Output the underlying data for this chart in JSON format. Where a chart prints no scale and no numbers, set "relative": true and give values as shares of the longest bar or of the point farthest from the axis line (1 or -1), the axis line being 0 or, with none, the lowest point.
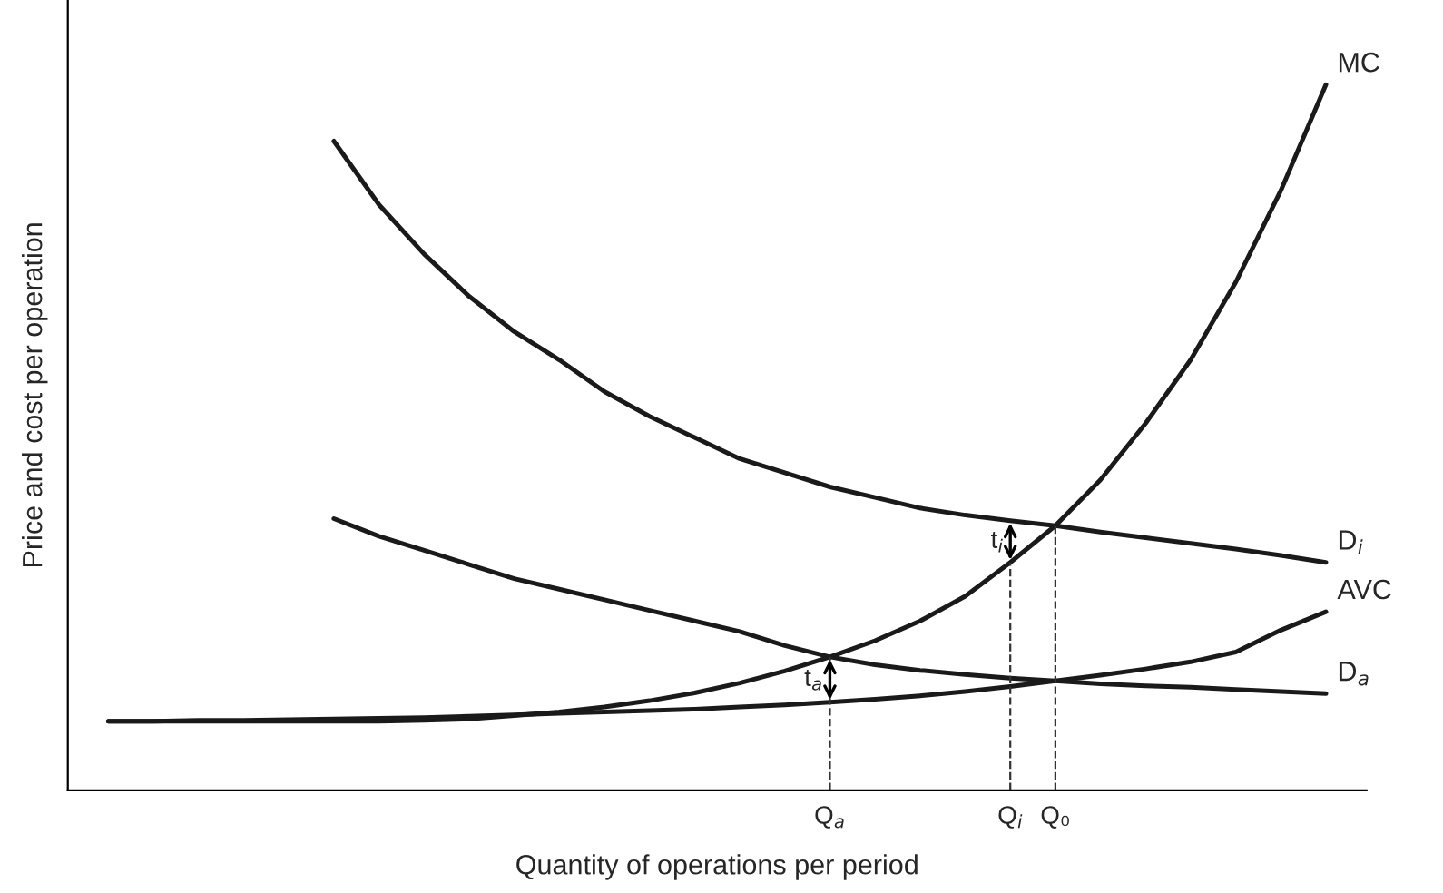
{
  "chart_data": {
    "type": "line",
    "relative": true,
    "xlabel": "Quantity of operations per period",
    "ylabel": "Price and cost per operation",
    "categories": [
      null,
      null,
      null,
      null,
      null,
      null,
      null,
      null,
      null,
      null,
      null,
      null,
      null,
      null,
      null,
      null,
      "Q$_{a}$",
      null,
      null,
      null,
      "Q$_{i}$",
      "Q₀",
      null,
      null,
      null,
      null,
      null,
      null
    ],
    "series": [
      {
        "name": "MC",
        "color": "#1a1a1a",
        "values": [
          0.098,
          0.098,
          0.098,
          0.098,
          0.098,
          0.098,
          0.098,
          0.099,
          0.101,
          0.106,
          0.111,
          0.118,
          0.127,
          0.138,
          0.152,
          0.169,
          0.189,
          0.212,
          0.24,
          0.275,
          0.323,
          0.375,
          0.44,
          0.52,
          0.61,
          0.72,
          0.85,
          1.0
        ]
      },
      {
        "name": "D$_{i}$",
        "color": "#1a1a1a",
        "values": [
          null,
          null,
          null,
          null,
          null,
          0.92,
          0.83,
          0.76,
          0.7,
          0.65,
          0.61,
          0.565,
          0.53,
          0.5,
          0.47,
          0.45,
          0.43,
          0.415,
          0.4,
          0.39,
          0.382,
          0.375,
          0.366,
          0.358,
          0.35,
          0.342,
          0.333,
          0.323
        ]
      },
      {
        "name": "AVC",
        "color": "#1a1a1a",
        "values": [
          0.098,
          0.098,
          0.099,
          0.099,
          0.1,
          0.101,
          0.102,
          0.103,
          0.105,
          0.107,
          0.109,
          0.111,
          0.113,
          0.115,
          0.118,
          0.121,
          0.125,
          0.129,
          0.134,
          0.14,
          0.147,
          0.155,
          0.163,
          0.172,
          0.182,
          0.196,
          0.227,
          0.253
        ]
      },
      {
        "name": "D$_{a}$",
        "color": "#1a1a1a",
        "values": [
          null,
          null,
          null,
          null,
          null,
          0.385,
          0.36,
          0.34,
          0.32,
          0.3,
          0.285,
          0.27,
          0.255,
          0.24,
          0.225,
          0.205,
          0.189,
          0.178,
          0.17,
          0.164,
          0.159,
          0.155,
          0.151,
          0.148,
          0.146,
          0.143,
          0.14,
          0.137
        ]
      }
    ],
    "ref_lines": [
      {
        "axis": "x",
        "value": "Q$_{a}$",
        "line_style": "dashed"
      },
      {
        "axis": "x",
        "value": "Q$_{i}$",
        "line_style": "dashed"
      },
      {
        "axis": "x",
        "value": "Q₀",
        "line_style": "dashed"
      }
    ],
    "annotations": [
      {
        "text": "t$_{a}$",
        "x": "Q$_{a}$",
        "y": 0.125
      },
      {
        "text": "t$_{i}$",
        "x": "Q$_{i}$",
        "y": 0.382
      }
    ],
    "grid": false,
    "legend": false,
    "marker": "none",
    "line_style": "solid"
  }
}
